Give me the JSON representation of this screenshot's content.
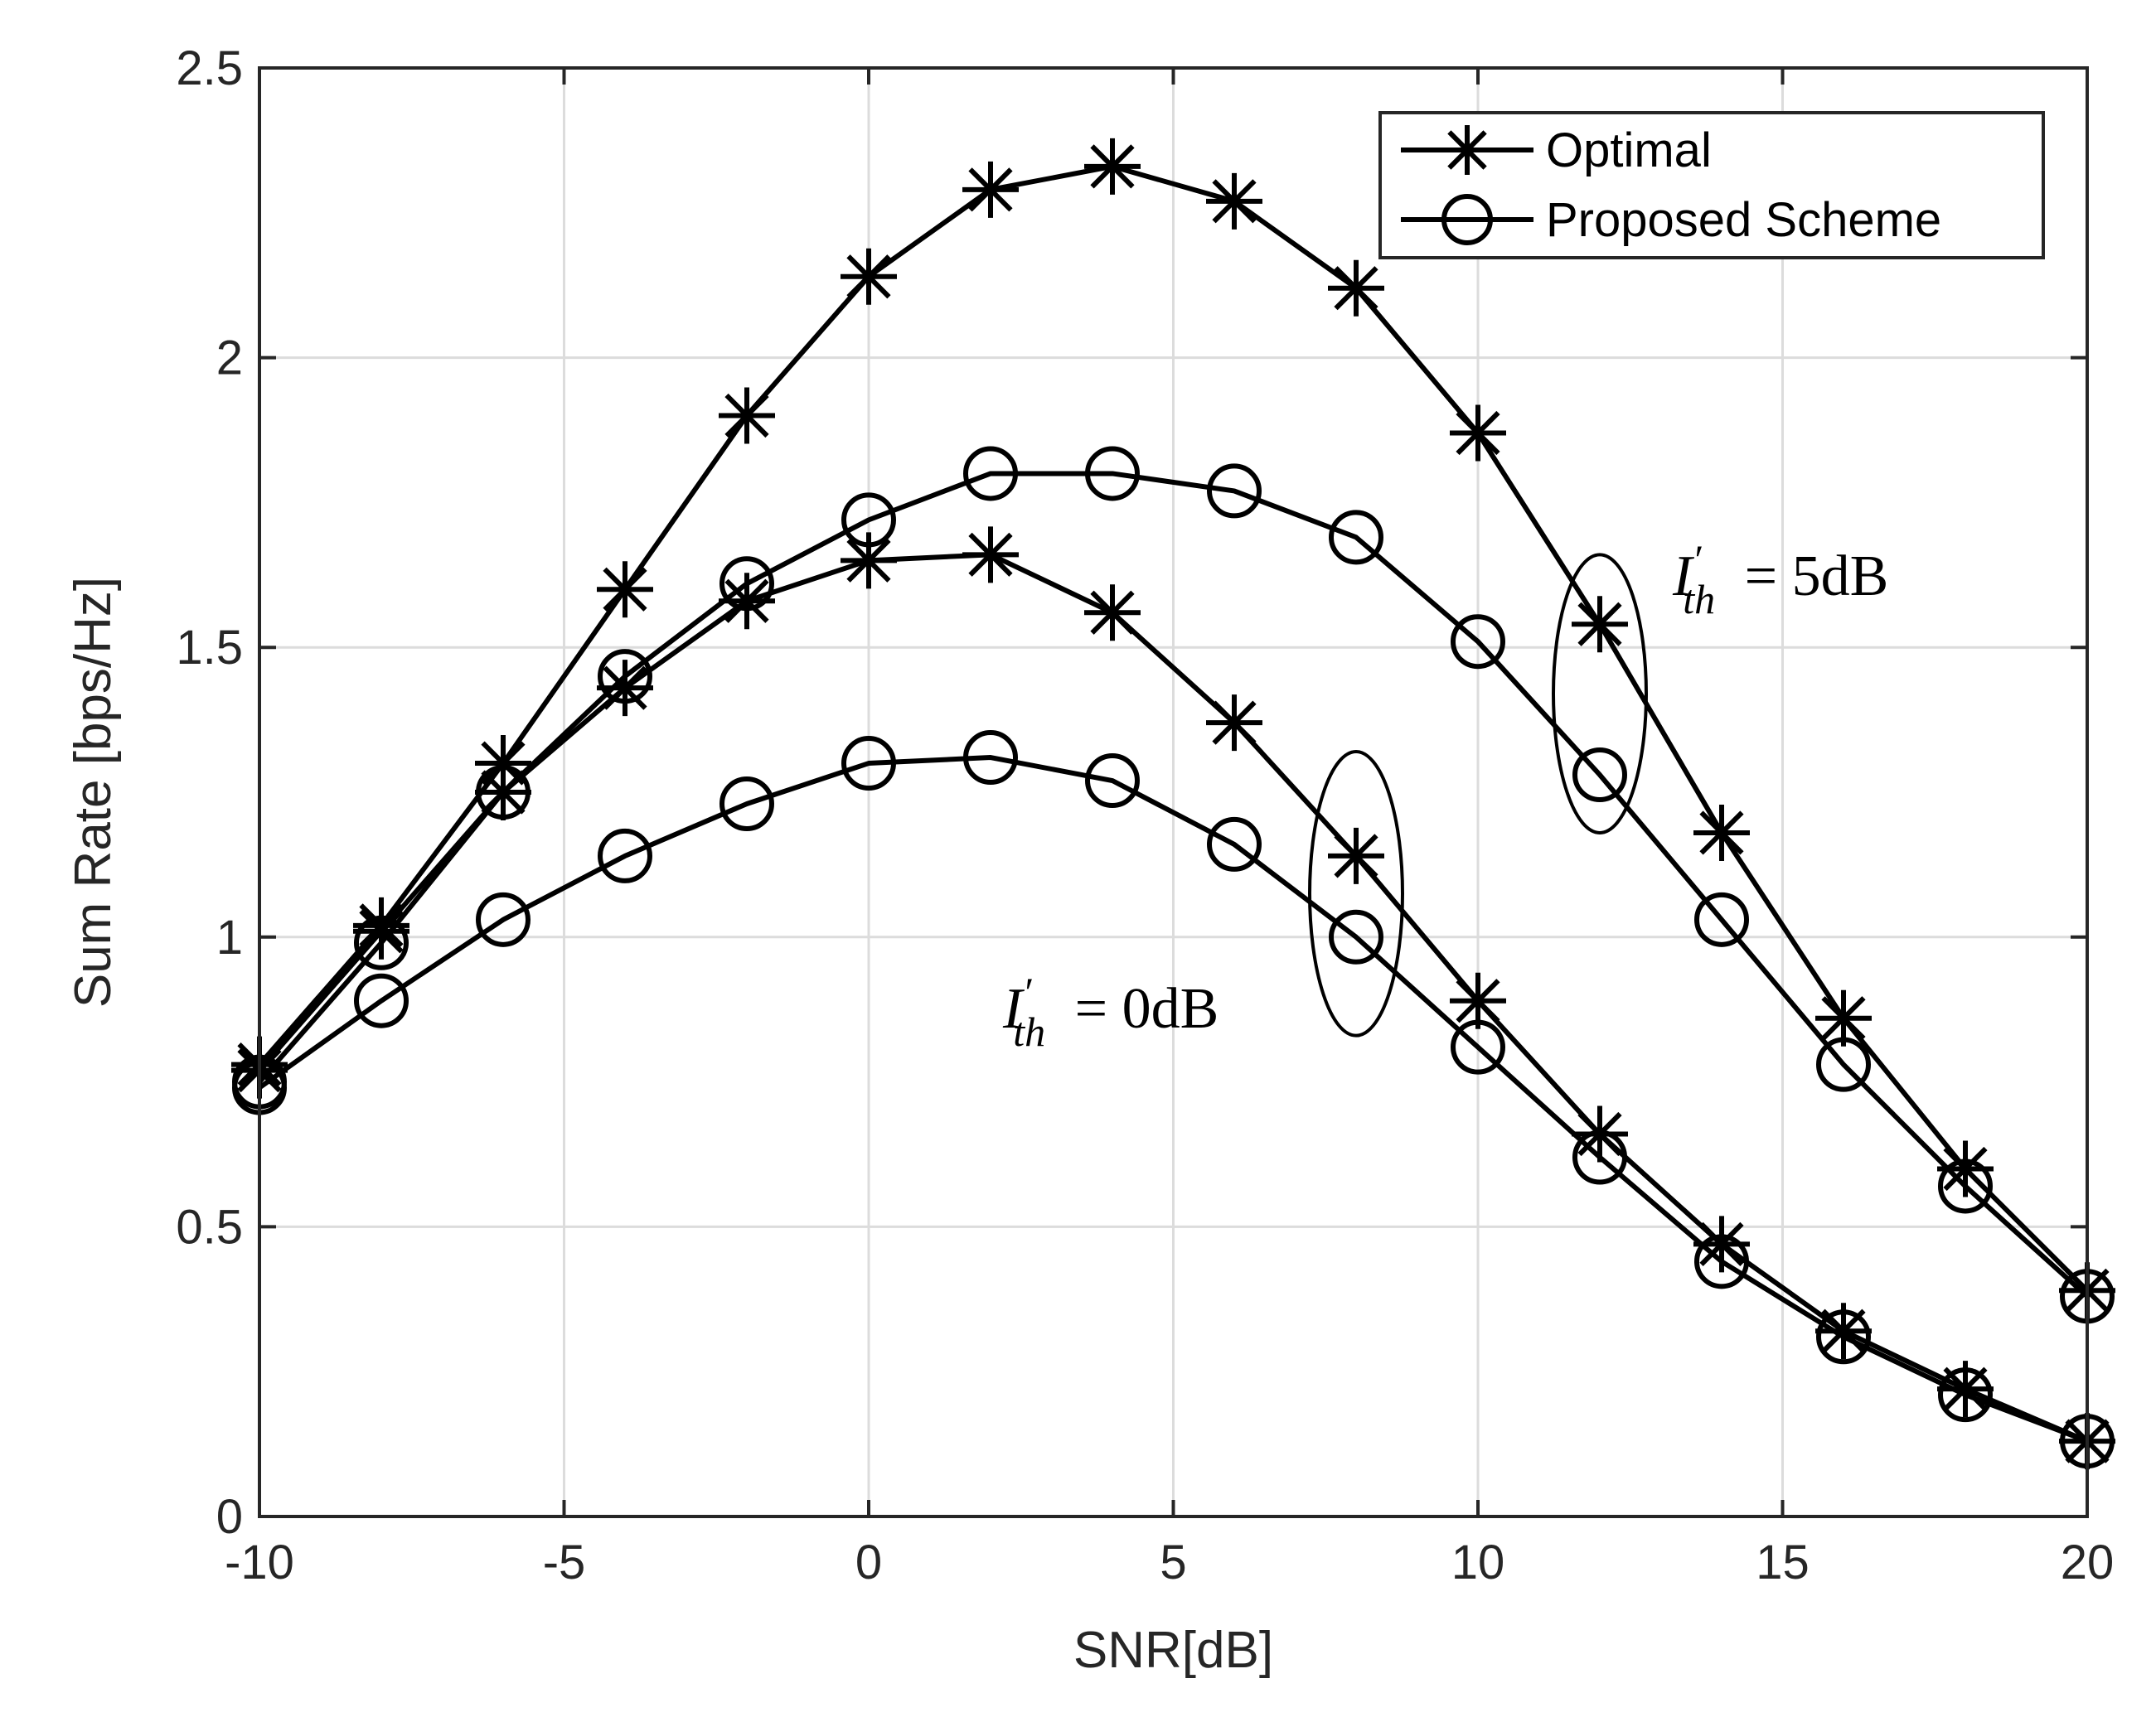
{
  "chart_data": {
    "type": "line",
    "title": "",
    "xlabel": "SNR[dB]",
    "ylabel": "Sum Rate [bps/Hz]",
    "xlim": [
      -10,
      20
    ],
    "ylim": [
      0,
      2.5
    ],
    "grid": true,
    "legend_position": "top-right",
    "x_ticks": [
      -10,
      -5,
      0,
      5,
      10,
      15,
      20
    ],
    "x_tick_labels": [
      "-10",
      "-5",
      "0",
      "5",
      "10",
      "15",
      "20"
    ],
    "y_ticks": [
      0,
      0.5,
      1,
      1.5,
      2,
      2.5
    ],
    "y_tick_labels": [
      "0",
      "0.5",
      "1",
      "1.5",
      "2",
      "2.5"
    ],
    "x": [
      -10,
      -8,
      -6,
      -4,
      -2,
      0,
      2,
      4,
      6,
      8,
      10,
      12,
      14,
      16,
      18,
      20
    ],
    "legend": [
      {
        "label": "Optimal",
        "marker": "star"
      },
      {
        "label": "Proposed Scheme",
        "marker": "circle"
      }
    ],
    "series": [
      {
        "name": "Optimal (I'th = 5dB)",
        "marker": "star",
        "values": [
          0.78,
          1.02,
          1.3,
          1.6,
          1.9,
          2.14,
          2.29,
          2.33,
          2.27,
          2.12,
          1.87,
          1.54,
          1.18,
          0.86,
          0.6,
          0.39
        ]
      },
      {
        "name": "Proposed Scheme (I'th = 5dB)",
        "marker": "circle",
        "values": [
          0.75,
          0.99,
          1.25,
          1.45,
          1.61,
          1.72,
          1.8,
          1.8,
          1.77,
          1.69,
          1.51,
          1.28,
          1.03,
          0.78,
          0.57,
          0.38
        ]
      },
      {
        "name": "Optimal (I'th = 0dB)",
        "marker": "star",
        "values": [
          0.77,
          1.01,
          1.25,
          1.43,
          1.58,
          1.65,
          1.66,
          1.56,
          1.37,
          1.14,
          0.89,
          0.66,
          0.47,
          0.32,
          0.22,
          0.13
        ]
      },
      {
        "name": "Proposed Scheme (I'th = 0dB)",
        "marker": "circle",
        "values": [
          0.74,
          0.89,
          1.03,
          1.14,
          1.23,
          1.3,
          1.31,
          1.27,
          1.16,
          1.0,
          0.81,
          0.62,
          0.44,
          0.31,
          0.21,
          0.13
        ]
      }
    ],
    "annotations": [
      {
        "text": "I′th = 5dB",
        "group_x": 12,
        "group_y_range": [
          1.18,
          1.66
        ],
        "base": "I",
        "prime": "′",
        "sub": "th",
        "rhs": "= 5dB"
      },
      {
        "text": "I′th = 0dB",
        "group_x": 8,
        "group_y_range": [
          0.83,
          1.32
        ],
        "base": "I",
        "prime": "′",
        "sub": "th",
        "rhs": "= 0dB"
      }
    ]
  }
}
